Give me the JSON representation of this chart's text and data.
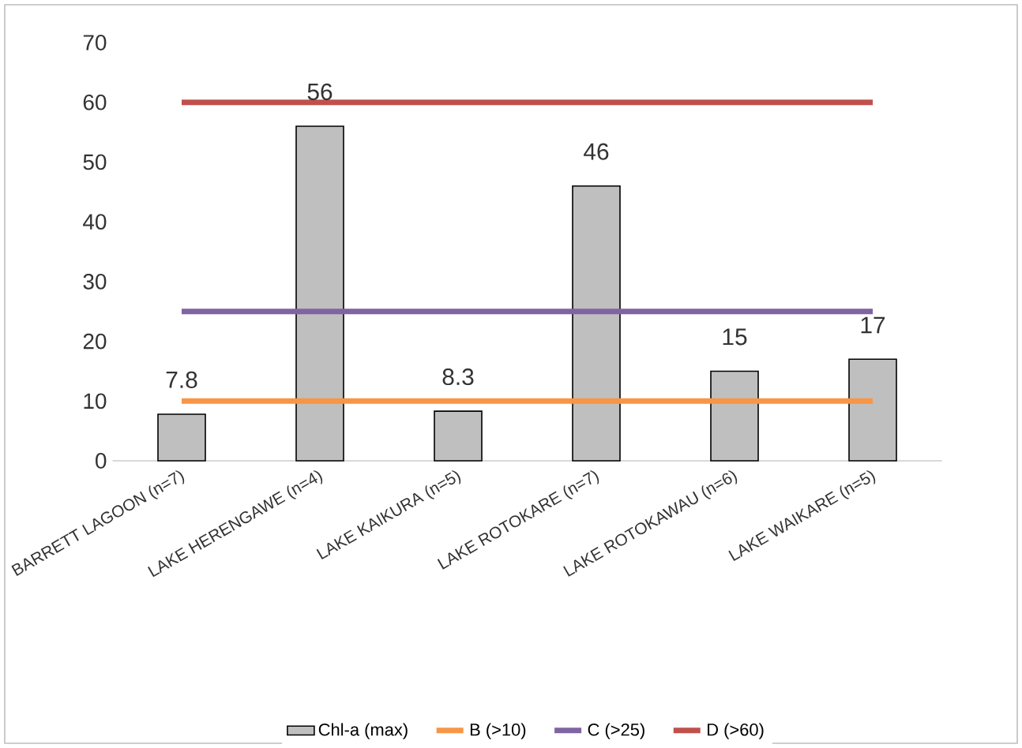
{
  "chart_data": {
    "type": "bar",
    "categories": [
      "BARRETT LAGOON (n=7)",
      "LAKE HERENGAWE (n=4)",
      "LAKE KAIKURA (n=5)",
      "LAKE ROTOKARE (n=7)",
      "LAKE ROTOKAWAU (n=6)",
      "LAKE WAIKARE (n=5)"
    ],
    "series": [
      {
        "name": "Chl-a (max)",
        "color": "#bfbfbf",
        "values": [
          7.8,
          56,
          8.3,
          46,
          15,
          17
        ],
        "value_labels": [
          "7.8",
          "56",
          "8.3",
          "46",
          "15",
          "17"
        ]
      },
      {
        "name": "B (>10)",
        "type": "line",
        "color": "#f79646",
        "values": [
          10,
          10,
          10,
          10,
          10,
          10
        ]
      },
      {
        "name": "C (>25)",
        "type": "line",
        "color": "#8064a2",
        "values": [
          25,
          25,
          25,
          25,
          25,
          25
        ]
      },
      {
        "name": "D (>60)",
        "type": "line",
        "color": "#c0504d",
        "values": [
          60,
          60,
          60,
          60,
          60,
          60
        ]
      }
    ],
    "ylim": [
      0,
      70
    ],
    "yticks": [
      0,
      10,
      20,
      30,
      40,
      50,
      60,
      70
    ],
    "grid": false,
    "legend": "bottom",
    "marker": "none",
    "line_style": "solid"
  }
}
